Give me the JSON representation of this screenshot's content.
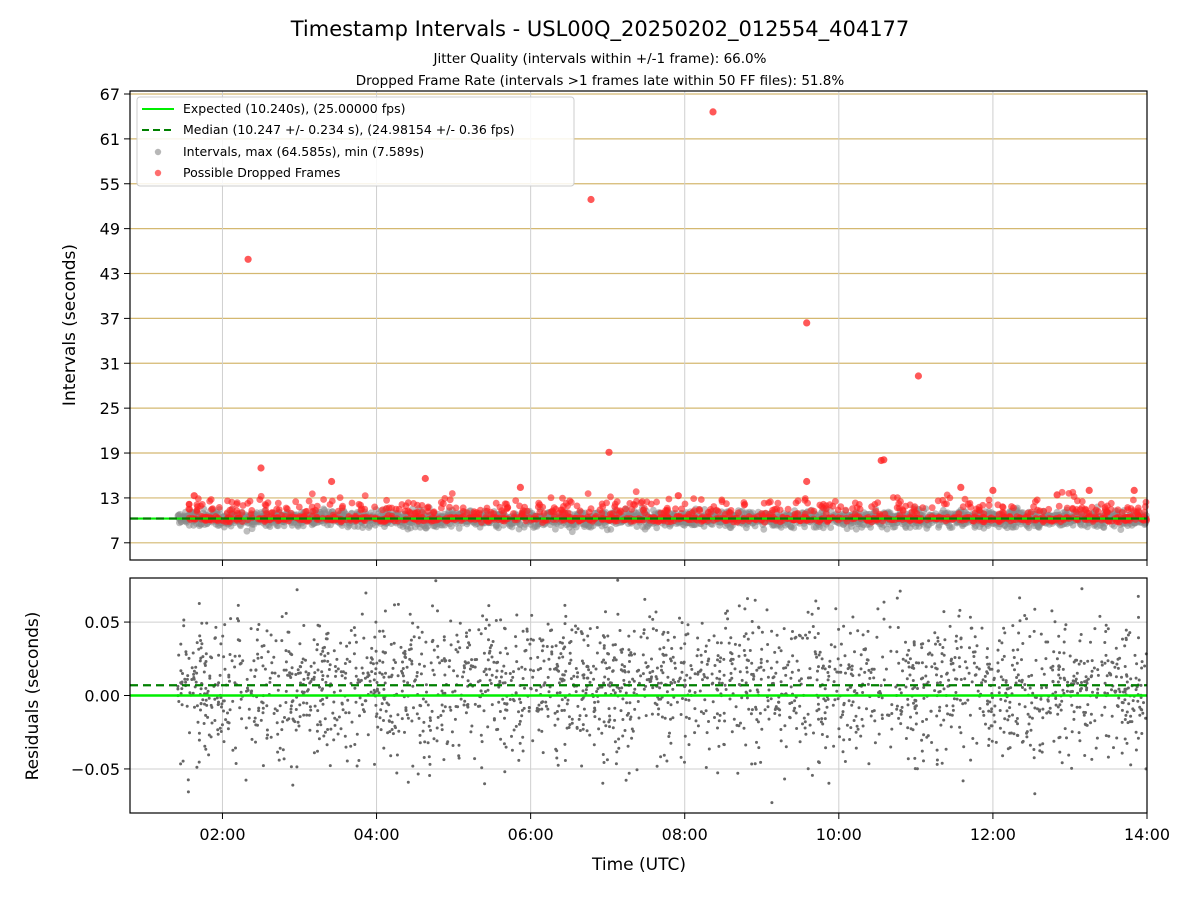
{
  "chart_data": [
    {
      "type": "scatter",
      "title": "Timestamp Intervals - USL00Q_20250202_012554_404177",
      "subtitle_1": "Jitter Quality (intervals within +/-1 frame): 66.0%",
      "subtitle_2": "Dropped Frame Rate (intervals >1 frames late within 50 FF files): 51.8%",
      "ylabel": "Intervals (seconds)",
      "xlabel": "",
      "xlim_hours": [
        0.8,
        14.0
      ],
      "ylim": [
        4.7,
        67.4
      ],
      "yticks": [
        7,
        13,
        19,
        25,
        31,
        37,
        43,
        49,
        55,
        61,
        67
      ],
      "grid": true,
      "legend_position": "top-left",
      "colors": {
        "expected": "#00ee00",
        "median": "#008000",
        "intervals": "#888888",
        "dropped": "#ff2020",
        "gold_grid": "#d4b870"
      },
      "legend": [
        {
          "label": "Expected (10.240s), (25.00000 fps)",
          "kind": "line",
          "color": "#00ee00"
        },
        {
          "label": "Median (10.247 +/- 0.234 s), (24.98154 +/- 0.36 fps)",
          "kind": "dashed",
          "color": "#008000"
        },
        {
          "label": "Intervals, max (64.585s), min (7.589s)",
          "kind": "dot",
          "color": "#999999"
        },
        {
          "label": "Possible Dropped Frames",
          "kind": "dot",
          "color": "#ff3030"
        }
      ],
      "expected_interval": 10.24,
      "median_interval": 10.247,
      "interval_max": 64.585,
      "interval_min": 7.589,
      "outliers": [
        {
          "x": "01:38",
          "y": 13.3
        },
        {
          "x": "02:20",
          "y": 44.9
        },
        {
          "x": "02:30",
          "y": 17.0
        },
        {
          "x": "03:25",
          "y": 15.2
        },
        {
          "x": "04:38",
          "y": 15.6
        },
        {
          "x": "05:52",
          "y": 14.4
        },
        {
          "x": "06:47",
          "y": 52.9
        },
        {
          "x": "07:01",
          "y": 19.1
        },
        {
          "x": "07:55",
          "y": 13.3
        },
        {
          "x": "08:22",
          "y": 64.6
        },
        {
          "x": "09:35",
          "y": 36.4
        },
        {
          "x": "09:35",
          "y": 15.2
        },
        {
          "x": "10:33",
          "y": 18.0
        },
        {
          "x": "10:35",
          "y": 18.1
        },
        {
          "x": "11:02",
          "y": 29.3
        },
        {
          "x": "11:35",
          "y": 14.4
        },
        {
          "x": "12:00",
          "y": 14.0
        },
        {
          "x": "12:50",
          "y": 13.4
        },
        {
          "x": "13:15",
          "y": 14.0
        },
        {
          "x": "13:50",
          "y": 14.0
        }
      ]
    },
    {
      "type": "scatter",
      "ylabel": "Residuals (seconds)",
      "xlabel": "Time (UTC)",
      "xlim_hours": [
        0.8,
        14.0
      ],
      "ylim": [
        -0.08,
        0.08
      ],
      "yticks": [
        -0.05,
        0.0,
        0.05
      ],
      "ytick_labels": [
        "−0.05",
        "0.00",
        "0.05"
      ],
      "xticks": [
        "02:00",
        "04:00",
        "06:00",
        "08:00",
        "10:00",
        "12:00",
        "14:00"
      ],
      "grid": true,
      "expected_residual": 0.0,
      "median_residual": 0.007,
      "colors": {
        "expected": "#00ee00",
        "median": "#008000",
        "points": "#666666"
      }
    }
  ]
}
